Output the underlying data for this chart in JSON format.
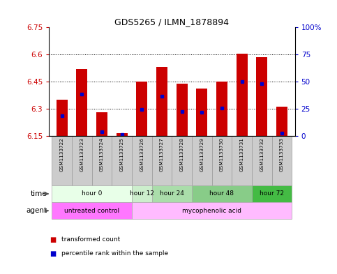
{
  "title": "GDS5265 / ILMN_1878894",
  "samples": [
    "GSM1133722",
    "GSM1133723",
    "GSM1133724",
    "GSM1133725",
    "GSM1133726",
    "GSM1133727",
    "GSM1133728",
    "GSM1133729",
    "GSM1133730",
    "GSM1133731",
    "GSM1133732",
    "GSM1133733"
  ],
  "bar_tops": [
    6.35,
    6.52,
    6.28,
    6.165,
    6.45,
    6.53,
    6.44,
    6.41,
    6.45,
    6.605,
    6.585,
    6.31
  ],
  "bar_bottom": 6.15,
  "percentile_values": [
    6.26,
    6.38,
    6.17,
    6.155,
    6.295,
    6.37,
    6.285,
    6.28,
    6.305,
    6.45,
    6.44,
    6.165
  ],
  "ylim_left": [
    6.15,
    6.75
  ],
  "ylim_right": [
    0,
    100
  ],
  "yticks_left": [
    6.15,
    6.3,
    6.45,
    6.6,
    6.75
  ],
  "yticks_right": [
    0,
    25,
    50,
    75,
    100
  ],
  "ytick_labels_left": [
    "6.15",
    "6.3",
    "6.45",
    "6.6",
    "6.75"
  ],
  "ytick_labels_right": [
    "0",
    "25",
    "50",
    "75",
    "100%"
  ],
  "dotted_lines": [
    6.3,
    6.45,
    6.6
  ],
  "bar_color": "#cc0000",
  "percentile_color": "#0000cc",
  "bg_color": "#ffffff",
  "plot_bg": "#ffffff",
  "time_groups": [
    {
      "label": "hour 0",
      "start": 0,
      "end": 3,
      "color": "#e8ffe8"
    },
    {
      "label": "hour 12",
      "start": 4,
      "end": 4,
      "color": "#cceecc"
    },
    {
      "label": "hour 24",
      "start": 5,
      "end": 6,
      "color": "#aaddaa"
    },
    {
      "label": "hour 48",
      "start": 7,
      "end": 9,
      "color": "#88cc88"
    },
    {
      "label": "hour 72",
      "start": 10,
      "end": 11,
      "color": "#44bb44"
    }
  ],
  "agent_groups": [
    {
      "label": "untreated control",
      "start": 0,
      "end": 3,
      "color": "#ff77ff"
    },
    {
      "label": "mycophenolic acid",
      "start": 4,
      "end": 11,
      "color": "#ffbbff"
    }
  ],
  "xlabel_time": "time",
  "xlabel_agent": "agent",
  "legend_red": "transformed count",
  "legend_blue": "percentile rank within the sample",
  "bar_width": 0.55,
  "tick_label_fontsize": 7.5,
  "axis_label_color_left": "#cc0000",
  "axis_label_color_right": "#0000cc",
  "sample_box_color": "#cccccc",
  "sample_box_edge": "#999999"
}
